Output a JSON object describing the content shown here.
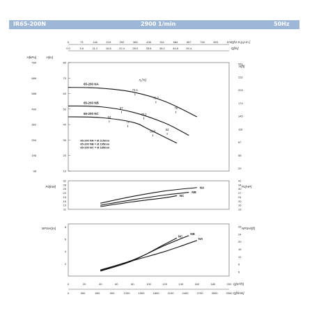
{
  "header": {
    "model": "IR65-200N",
    "speed": "2900 1/min",
    "frequency": "50Hz"
  },
  "colors": {
    "header_bg": "#9eb7d6",
    "axis": "#555555",
    "curve": "#111111",
    "grid": "#cccccc"
  },
  "chart_data": [
    {
      "type": "line",
      "panel": "head",
      "x": {
        "primary_label": "Q[m³/h]",
        "primary_ticks": [
          "0",
          "20",
          "40",
          "60",
          "80",
          "100",
          "120",
          "140",
          "160",
          "180",
          "200"
        ],
        "primary_range": [
          0,
          200
        ]
      },
      "top_axes": [
        {
          "label": "Q[U.S.g.p.m.]",
          "ticks": [
            "0",
            "73",
            "146",
            "219",
            "292",
            "365",
            "438",
            "511",
            "584",
            "657",
            "730",
            "803",
            "876"
          ]
        },
        {
          "label": "Q[l/s]",
          "ticks": [
            "0.0",
            "5.6",
            "11.2",
            "16.8",
            "22.4",
            "28.0",
            "33.6",
            "39.2",
            "44.8",
            "50.4",
            "",
            "",
            ""
          ]
        }
      ],
      "left_axes": [
        {
          "label": "H[m]",
          "ticks": [
            "10",
            "20",
            "30",
            "40",
            "50",
            "60",
            "70",
            "80"
          ],
          "range": [
            10,
            80
          ]
        },
        {
          "label": "H[kPa]",
          "ticks": [
            "98",
            "196",
            "294",
            "392",
            "490",
            "588",
            "686",
            "784"
          ]
        }
      ],
      "right_axis": {
        "label": "H[ft]",
        "ticks": [
          "29",
          "58",
          "87",
          "116",
          "145",
          "174",
          "203",
          "232",
          "261"
        ]
      },
      "series": [
        {
          "name": "65-200 NA",
          "x": [
            0,
            40,
            80,
            120,
            160
          ],
          "y": [
            64,
            63.5,
            61,
            55,
            45
          ]
        },
        {
          "name": "65-200 NB",
          "x": [
            0,
            40,
            80,
            120,
            150
          ],
          "y": [
            52,
            51.5,
            48,
            41,
            33
          ]
        },
        {
          "name": "65-200 NC",
          "x": [
            0,
            40,
            80,
            100,
            135
          ],
          "y": [
            45,
            44.5,
            41.5,
            37,
            28
          ]
        }
      ],
      "efficiency": {
        "label": "η [%]",
        "points": [
          {
            "value": "73.1",
            "x": 83,
            "y": 61.5
          },
          {
            "value": "75.7",
            "x": 109,
            "y": 56.5
          },
          {
            "value": "75",
            "x": 134,
            "y": 50
          },
          {
            "value": "67",
            "x": 66,
            "y": 50
          },
          {
            "value": "70.2",
            "x": 94,
            "y": 46
          },
          {
            "value": "64",
            "x": 51,
            "y": 44
          },
          {
            "value": "72",
            "x": 74,
            "y": 41
          },
          {
            "value": "68.5",
            "x": 105,
            "y": 35
          },
          {
            "value": "63",
            "x": 123,
            "y": 36
          }
        ]
      },
      "impeller_legend": [
        "65-200 NA = Ø 215mm",
        "65-200 NB = Ø 195mm",
        "65-200 NC = Ø 185mm"
      ]
    },
    {
      "type": "line",
      "panel": "power",
      "left_axes": [
        {
          "label": "P2[kW]",
          "ticks": [
            "11",
            "13",
            "16",
            "19",
            "22",
            "25",
            "28",
            "32"
          ],
          "range": [
            11,
            32
          ]
        }
      ],
      "right_axis": {
        "label": "P2[HP]",
        "ticks": [
          "13",
          "16",
          "20",
          "24",
          "27",
          "30",
          "34",
          "41"
        ]
      },
      "series": [
        {
          "name": "NA",
          "x": [
            40,
            80,
            120,
            160
          ],
          "y": [
            15.5,
            20.5,
            24.5,
            27
          ]
        },
        {
          "name": "NB",
          "x": [
            40,
            80,
            120,
            150
          ],
          "y": [
            14,
            18,
            21.5,
            23.5
          ]
        },
        {
          "name": "NC",
          "x": [
            40,
            80,
            120,
            135
          ],
          "y": [
            13,
            16.5,
            19.5,
            21
          ]
        }
      ]
    },
    {
      "type": "line",
      "panel": "npsh",
      "left_axes": [
        {
          "label": "NPSHr[m]",
          "ticks": [
            "2",
            "4",
            "6",
            "8"
          ],
          "range": [
            0,
            8.5
          ]
        }
      ],
      "right_axis": {
        "label": "NPSHr[ft]",
        "ticks": [
          "6",
          "8",
          "12",
          "16",
          "20",
          "24",
          "28"
        ]
      },
      "x": {
        "primary_label": "Q[m³/h]",
        "primary_ticks": [
          "0",
          "20",
          "40",
          "60",
          "80",
          "100",
          "120",
          "140",
          "160",
          "180",
          "200"
        ],
        "secondary_label": "Q[l/min]",
        "secondary_ticks": [
          "0",
          "300",
          "600",
          "900",
          "1200",
          "1500",
          "1800",
          "2100",
          "2400",
          "2700",
          "3000",
          "3300"
        ]
      },
      "series": [
        {
          "name": "NC",
          "x": [
            40,
            80,
            120,
            135
          ],
          "y": [
            0.8,
            2.5,
            5.2,
            6.2
          ]
        },
        {
          "name": "NB",
          "x": [
            40,
            80,
            120,
            150
          ],
          "y": [
            1.0,
            2.6,
            5.0,
            6.6
          ]
        },
        {
          "name": "NA",
          "x": [
            40,
            80,
            120,
            160
          ],
          "y": [
            0.9,
            2.5,
            4.0,
            5.8
          ]
        }
      ]
    }
  ]
}
